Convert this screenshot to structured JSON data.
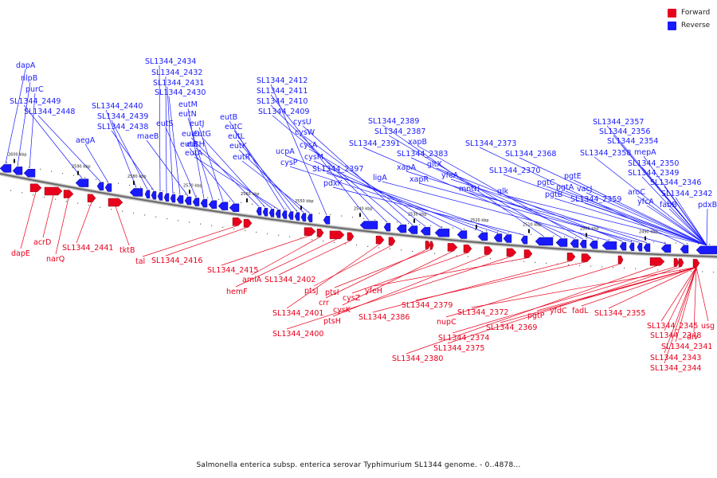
{
  "colors": {
    "forward": "#e8001c",
    "reverse": "#1a1aff",
    "backbone": "#8a8a8a"
  },
  "legend": [
    {
      "label": "Forward",
      "color": "#e8001c"
    },
    {
      "label": "Reverse",
      "color": "#1a1aff"
    }
  ],
  "caption": "Salmonella enterica subsp. enterica serovar Typhimurium SL1344 genome. - 0..4878...",
  "scale_labels": [
    "2600 kbp",
    "2590 kbp",
    "2580 kbp",
    "2570 kbp",
    "2560 kbp",
    "2550 kbp",
    "2540 kbp",
    "2530 kbp",
    "2520 kbp",
    "2510 kbp",
    "2500 kbp",
    "2490 kbp"
  ],
  "reverse_labels": [
    "dapA",
    "nlpB",
    "purC",
    "SL1344_2449",
    "SL1344_2448",
    "aegA",
    "SL1344_2440",
    "SL1344_2439",
    "SL1344_2438",
    "SL1344_2434",
    "SL1344_2432",
    "SL1344_2431",
    "SL1344_2430",
    "maeB",
    "eutS",
    "eutM",
    "eutN",
    "eutJ",
    "eutE",
    "eutD",
    "eutG",
    "eutH",
    "eutA",
    "eutB",
    "eutC",
    "eutL",
    "eutK",
    "eutR",
    "SL1344_2412",
    "SL1344_2411",
    "SL1344_2410",
    "SL1344_2409",
    "cysU",
    "cysW",
    "cysA",
    "cysM",
    "ucpA",
    "cysP",
    "SL1344_2397",
    "pdxK",
    "SL1344_2389",
    "SL1344_2387",
    "SL1344_2391",
    "xapB",
    "SL1344_2383",
    "ligA",
    "gltX",
    "xapA",
    "xapR",
    "yfeA",
    "mntH",
    "SL1344_2373",
    "SL1344_2368",
    "SL1344_2370",
    "glk",
    "pgtC",
    "pgtB",
    "pgtA",
    "pgtE",
    "vacJ",
    "SL1344_2359",
    "SL1344_2357",
    "SL1344_2356",
    "SL1344_2354",
    "SL1344_2358",
    "mepA",
    "SL1344_2350",
    "SL1344_2349",
    "aroC",
    "SL1344_2346",
    "yfcA",
    "SL1344_2342",
    "fabB",
    "pdxB"
  ],
  "forward_labels": [
    "dapE",
    "acrD",
    "narQ",
    "SL1344_2441",
    "tktB",
    "tal",
    "SL1344_2416",
    "SL1344_2415",
    "amiA",
    "hemF",
    "SL1344_2402",
    "SL1344_2401",
    "ptsJ",
    "crr",
    "ptsI",
    "cysK",
    "cysZ",
    "ptsH",
    "SL1344_2400",
    "yfeH",
    "SL1344_2386",
    "SL1344_2379",
    "nupC",
    "SL1344_2380",
    "SL1344_2374",
    "SL1344_2375",
    "SL1344_2372",
    "SL1344_2369",
    "pgtP",
    "yfdC",
    "fadL",
    "SL1344_2355",
    "SL1344_2345",
    "SL1344_2348",
    "div",
    "SL1344_2341",
    "SL1344_2343",
    "SL1344_2344",
    "usg"
  ]
}
